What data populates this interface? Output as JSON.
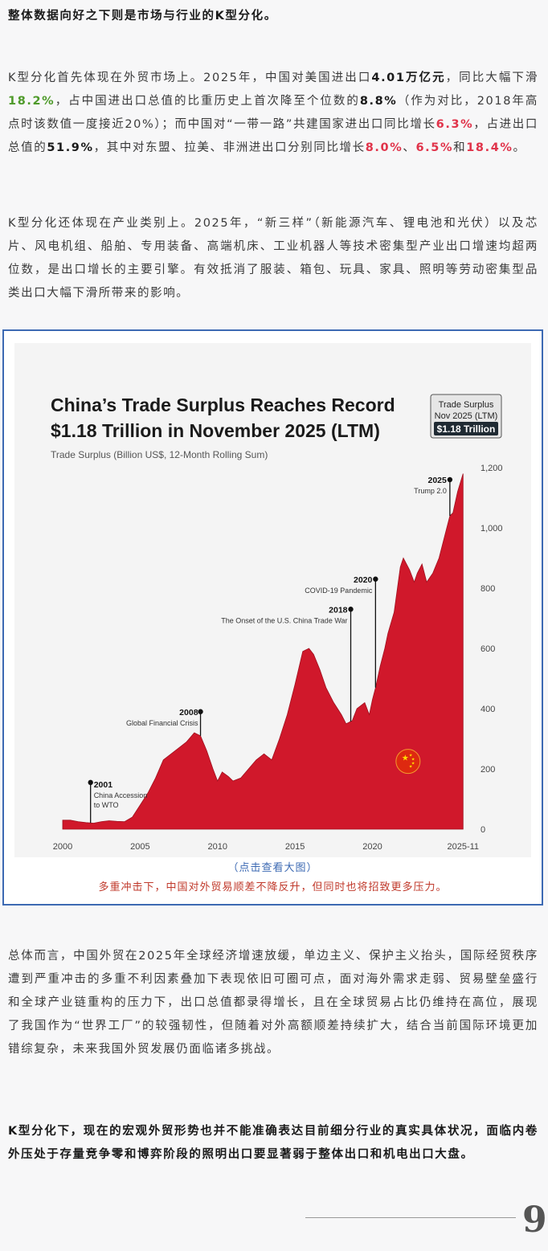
{
  "paragraphs": {
    "p1": "整体数据向好之下则是市场与行业的K型分化。",
    "p2": {
      "t1": "K型分化首先体现在外贸市场上。2025年，中国对美国进出口",
      "b1": "4.01万亿元",
      "t2": "，同比大幅下滑",
      "g1": "18.2%",
      "t3": "，占中国进出口总值的比重历史上首次降至个位数的",
      "b2": "8.8%",
      "t4": "（作为对比，2018年高点时该数值一度接近20%）；而中国对“一带一路”共建国家进出口同比增长",
      "r1": "6.3%",
      "t5": "，占进出口总值的",
      "b3": "51.9%",
      "t6": "，其中对东盟、拉美、非洲进出口分别同比增长",
      "r2": "8.0%",
      "t7": "、",
      "r3": "6.5%",
      "t8": "和",
      "r4": "18.4%",
      "t9": "。"
    },
    "p3": "K型分化还体现在产业类别上。2025年，“新三样”（新能源汽车、锂电池和光伏）以及芯片、风电机组、船舶、专用装备、高端机床、工业机器人等技术密集型产业出口增速均超两位数，是出口增长的主要引擎。有效抵消了服装、箱包、玩具、家具、照明等劳动密集型品类出口大幅下滑所带来的影响。",
    "p4": "总体而言，中国外贸在2025年全球经济增速放缓，单边主义、保护主义抬头，国际经贸秩序遭到严重冲击的多重不利因素叠加下表现依旧可圈可点，面对海外需求走弱、贸易壁垒盛行和全球产业链重构的压力下，出口总值都录得增长，且在全球贸易占比仍维持在高位，展现了我国作为“世界工厂”的较强韧性，但随着对外高额顺差持续扩大，结合当前国际环境更加错综复杂，未来我国外贸发展仍面临诸多挑战。",
    "p5": "K型分化下，现在的宏观外贸形势也并不能准确表达目前细分行业的真实具体状况，面临内卷外压处于存量竞争零和博弈阶段的照明出口要显著弱于整体出口和机电出口大盘。"
  },
  "figure": {
    "link_text": "（点击查看大图）",
    "note_text": "多重冲击下，中国对外贸易顺差不降反升，但同时也将招致更多压力。"
  },
  "quote_mark": "99",
  "colors": {
    "area": "#d0182b",
    "link": "#3d6ab3",
    "note": "#c0392b",
    "green": "#4e9a2a",
    "red": "#e0334a"
  },
  "chart_data": {
    "type": "area",
    "title_line1": "China’s Trade Surplus Reaches Record",
    "title_line2": "$1.18 Trillion in November 2025 (LTM)",
    "subtitle": "Trade Surplus (Billion US$, 12-Month Rolling Sum)",
    "badge": {
      "line1": "Trade Surplus",
      "line2": "Nov 2025 (LTM)",
      "value": "$1.18 Trillion"
    },
    "ylim": [
      0,
      1200
    ],
    "y_ticks": [
      "1,200",
      "1,000",
      "800",
      "600",
      "400",
      "200",
      "0"
    ],
    "x_ticks": [
      "2000",
      "2005",
      "2010",
      "2015",
      "2020",
      "2025-11"
    ],
    "x_tick_values": [
      2000,
      2005,
      2010,
      2015,
      2020,
      2025.85
    ],
    "xlim": [
      2000,
      2026.2
    ],
    "annotations": [
      {
        "x": 2001.8,
        "y": 155,
        "year": "2001",
        "label1": "China Accession",
        "label2": "to WTO"
      },
      {
        "x": 2008.9,
        "y": 390,
        "year": "2008",
        "label1": "Global Financial Crisis",
        "label2": ""
      },
      {
        "x": 2018.6,
        "y": 730,
        "year": "2018",
        "label1": "The Onset of the U.S. China Trade War",
        "label2": ""
      },
      {
        "x": 2020.2,
        "y": 830,
        "year": "2020",
        "label1": "COVID-19 Pandemic",
        "label2": ""
      },
      {
        "x": 2025.0,
        "y": 1160,
        "year": "2025",
        "label1": "Trump 2.0",
        "label2": ""
      }
    ],
    "series": [
      {
        "x": [
          2000.0,
          2000.5,
          2001.0,
          2001.5,
          2002.0,
          2002.5,
          2003.0,
          2003.5,
          2004.0,
          2004.5,
          2005.0,
          2005.5,
          2006.0,
          2006.5,
          2007.0,
          2007.5,
          2008.0,
          2008.5,
          2008.9,
          2009.3,
          2009.7,
          2010.0,
          2010.3,
          2010.7,
          2011.0,
          2011.5,
          2012.0,
          2012.5,
          2013.0,
          2013.5,
          2014.0,
          2014.5,
          2015.0,
          2015.5,
          2015.9,
          2016.2,
          2016.6,
          2017.0,
          2017.5,
          2018.0,
          2018.3,
          2018.7,
          2019.0,
          2019.5,
          2019.8,
          2020.0,
          2020.2,
          2020.5,
          2020.8,
          2021.0,
          2021.4,
          2021.8,
          2022.0,
          2022.4,
          2022.7,
          2022.9,
          2023.2,
          2023.5,
          2023.9,
          2024.3,
          2024.7,
          2025.0,
          2025.2,
          2025.5,
          2025.85
        ],
        "values": [
          30,
          30,
          25,
          22,
          20,
          25,
          28,
          26,
          25,
          40,
          80,
          120,
          170,
          230,
          250,
          270,
          290,
          320,
          310,
          260,
          200,
          160,
          190,
          175,
          160,
          170,
          200,
          230,
          250,
          230,
          300,
          380,
          480,
          590,
          600,
          580,
          530,
          470,
          420,
          380,
          350,
          360,
          400,
          420,
          380,
          430,
          470,
          540,
          600,
          650,
          720,
          870,
          900,
          860,
          820,
          850,
          880,
          820,
          850,
          900,
          980,
          1040,
          1050,
          1120,
          1180
        ]
      }
    ]
  }
}
